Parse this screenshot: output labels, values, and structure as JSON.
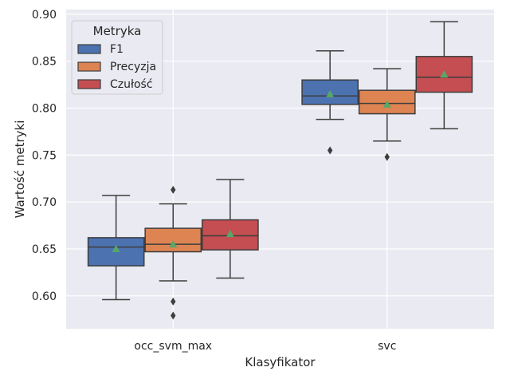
{
  "chart_data": {
    "type": "box",
    "xlabel": "Klasyfikator",
    "ylabel": "Wartość metryki",
    "ylim": [
      0.565,
      0.905
    ],
    "yticks": [
      "0.60",
      "0.65",
      "0.70",
      "0.75",
      "0.80",
      "0.85",
      "0.90"
    ],
    "categories": [
      "occ_svm_max",
      "svc"
    ],
    "grid": true,
    "legend": {
      "title": "Metryka",
      "placement": "upper-left"
    },
    "series": [
      {
        "name": "F1",
        "color": "#4c72b0",
        "boxes": [
          {
            "category": "occ_svm_max",
            "whisker_low": 0.596,
            "q1": 0.632,
            "median": 0.652,
            "q3": 0.662,
            "whisker_high": 0.707,
            "mean": 0.65,
            "outliers": []
          },
          {
            "category": "svc",
            "whisker_low": 0.788,
            "q1": 0.804,
            "median": 0.813,
            "q3": 0.83,
            "whisker_high": 0.861,
            "mean": 0.815,
            "outliers": [
              0.755
            ]
          }
        ]
      },
      {
        "name": "Precyzja",
        "color": "#dd8452",
        "boxes": [
          {
            "category": "occ_svm_max",
            "whisker_low": 0.616,
            "q1": 0.647,
            "median": 0.655,
            "q3": 0.672,
            "whisker_high": 0.698,
            "mean": 0.655,
            "outliers": [
              0.713,
              0.594,
              0.579
            ]
          },
          {
            "category": "svc",
            "whisker_low": 0.765,
            "q1": 0.794,
            "median": 0.805,
            "q3": 0.819,
            "whisker_high": 0.842,
            "mean": 0.804,
            "outliers": [
              0.748
            ]
          }
        ]
      },
      {
        "name": "Czułość",
        "color": "#c44e52",
        "boxes": [
          {
            "category": "occ_svm_max",
            "whisker_low": 0.619,
            "q1": 0.649,
            "median": 0.664,
            "q3": 0.681,
            "whisker_high": 0.724,
            "mean": 0.666,
            "outliers": []
          },
          {
            "category": "svc",
            "whisker_low": 0.778,
            "q1": 0.817,
            "median": 0.833,
            "q3": 0.855,
            "whisker_high": 0.892,
            "mean": 0.836,
            "outliers": []
          }
        ]
      }
    ],
    "colors": {
      "background": "#eaeaf2",
      "grid": "#ffffff",
      "line": "#3d3d3d",
      "mean_marker": "#55a868"
    }
  }
}
